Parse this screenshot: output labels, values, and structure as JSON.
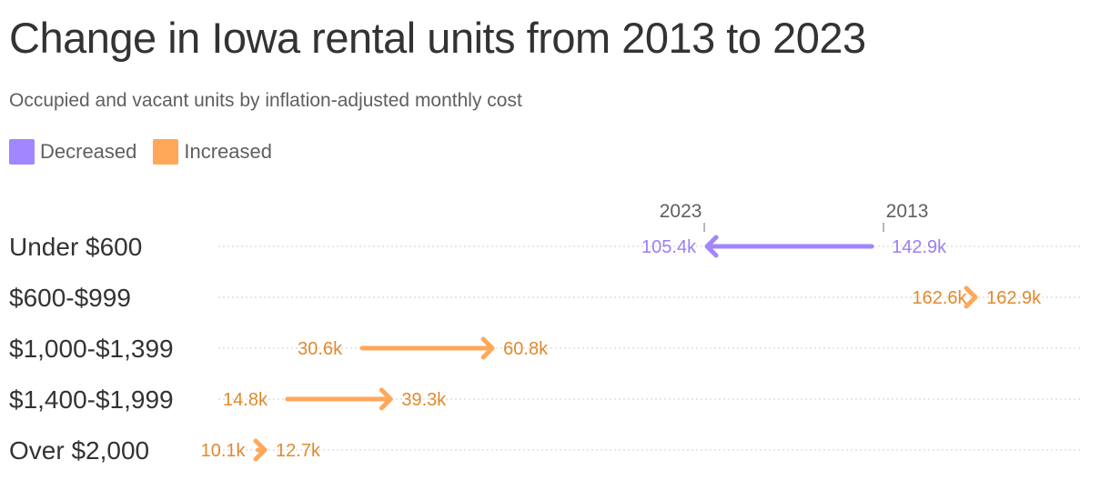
{
  "title": "Change in Iowa rental units from 2013 to 2023",
  "subtitle": "Occupied and vacant units by inflation-adjusted monthly cost",
  "legend": [
    {
      "label": "Decreased",
      "color": "#a186ff"
    },
    {
      "label": "Increased",
      "color": "#ffa85a"
    }
  ],
  "colors": {
    "decreased_line": "#a186ff",
    "decreased_text": "#9b7ff5",
    "increased_line": "#ffa85a",
    "increased_text": "#e08a2e"
  },
  "chart_data": {
    "type": "dumbbell-arrow",
    "title": "Change in Iowa rental units from 2013 to 2023",
    "subtitle": "Occupied and vacant units by inflation-adjusted monthly cost",
    "start_label": "2013",
    "end_label": "2023",
    "x_range": [
      0,
      180
    ],
    "grid": "dotted horizontal row lines",
    "categories": [
      "Under $600",
      "$600-$999",
      "$1,000-$1,399",
      "$1,400-$1,999",
      "Over $2,000"
    ],
    "series": [
      {
        "name": "2013",
        "values": [
          142.9,
          162.6,
          30.6,
          14.8,
          10.1
        ],
        "labels": [
          "142.9k",
          "162.6k",
          "30.6k",
          "14.8k",
          "10.1k"
        ]
      },
      {
        "name": "2023",
        "values": [
          105.4,
          162.9,
          60.8,
          39.3,
          12.7
        ],
        "labels": [
          "105.4k",
          "162.9k",
          "60.8k",
          "39.3k",
          "12.7k"
        ]
      }
    ],
    "direction": [
      "Decreased",
      "Increased",
      "Increased",
      "Increased",
      "Increased"
    ]
  }
}
